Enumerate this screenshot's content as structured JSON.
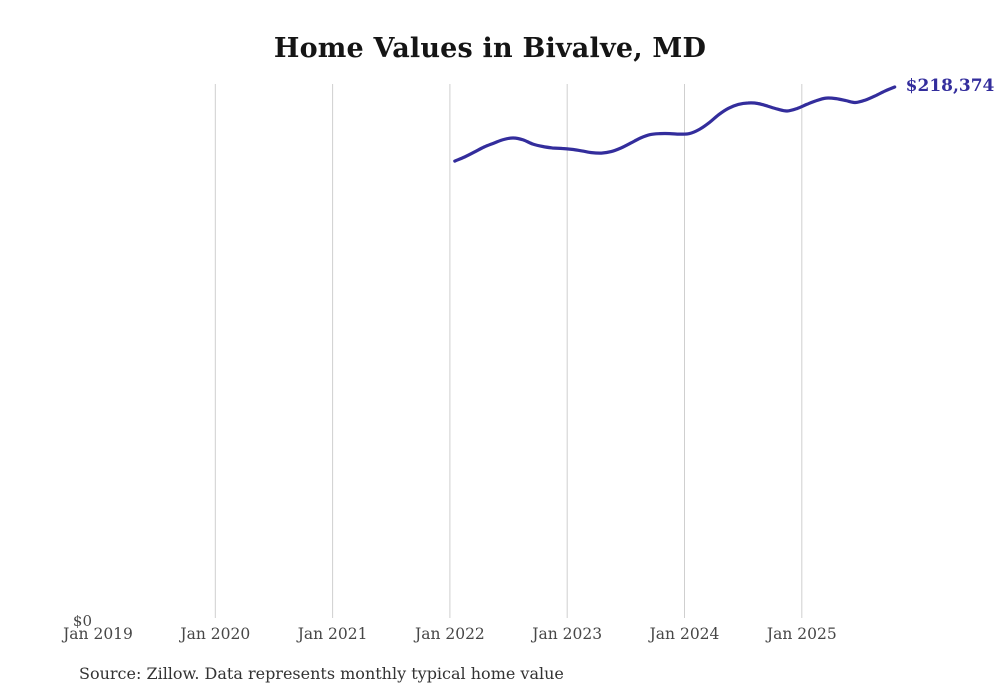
{
  "page": {
    "title": "Home Values in Bivalve, MD",
    "source_note": "Source: Zillow. Data represents monthly typical home value"
  },
  "colors": {
    "background": "#ffffff",
    "line": "#332d9c",
    "grid": "#cfcfcf",
    "axis_text": "#474747",
    "title_text": "#151515",
    "source_text": "#333333"
  },
  "chart_data": {
    "type": "line",
    "title": "Home Values in Bivalve, MD",
    "series_name": "Monthly typical home value",
    "end_label": "$218,374",
    "end_value": 218374,
    "y_zero_label": "$0",
    "ylim": [
      0,
      230000
    ],
    "grid": "vertical-yearly-only",
    "legend": "none",
    "x_ticks": [
      {
        "label": "Jan 2019",
        "gridline": false
      },
      {
        "label": "Jan 2020",
        "gridline": true
      },
      {
        "label": "Jan 2021",
        "gridline": true
      },
      {
        "label": "Jan 2022",
        "gridline": true
      },
      {
        "label": "Jan 2023",
        "gridline": true
      },
      {
        "label": "Jan 2024",
        "gridline": true
      },
      {
        "label": "Jan 2025",
        "gridline": true
      }
    ],
    "x": [
      "2022-01",
      "2022-02",
      "2022-03",
      "2022-04",
      "2022-05",
      "2022-06",
      "2022-07",
      "2022-08",
      "2022-09",
      "2022-10",
      "2022-11",
      "2022-12",
      "2023-01",
      "2023-02",
      "2023-03",
      "2023-04",
      "2023-05",
      "2023-06",
      "2023-07",
      "2023-08",
      "2023-09",
      "2023-10",
      "2023-11",
      "2023-12",
      "2024-01",
      "2024-02",
      "2024-03",
      "2024-04",
      "2024-05",
      "2024-06",
      "2024-07",
      "2024-08",
      "2024-09",
      "2024-10",
      "2024-11",
      "2024-12",
      "2025-01",
      "2025-02",
      "2025-03",
      "2025-04",
      "2025-05",
      "2025-06",
      "2025-07",
      "2025-08",
      "2025-09",
      "2025-10"
    ],
    "values": [
      187900,
      189600,
      191600,
      193700,
      195300,
      196800,
      197400,
      196600,
      194900,
      193900,
      193300,
      193100,
      192700,
      192100,
      191400,
      191200,
      191800,
      193300,
      195300,
      197400,
      198800,
      199200,
      199200,
      199000,
      199200,
      200900,
      203600,
      207000,
      209600,
      211200,
      211800,
      211600,
      210500,
      209300,
      208500,
      209500,
      211200,
      212800,
      213800,
      213600,
      212800,
      212000,
      213000,
      214700,
      216700,
      218374
    ]
  }
}
